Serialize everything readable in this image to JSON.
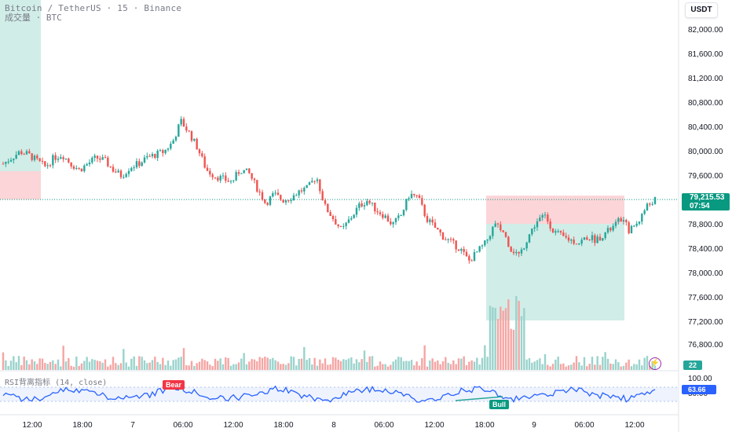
{
  "header": {
    "line1": "Bitcoin / TetherUS · 15 · Binance",
    "line2": "成交量 · BTC"
  },
  "currency_button": "USDT",
  "price_axis": {
    "labels": [
      "82,000.00",
      "81,600.00",
      "81,200.00",
      "80,800.00",
      "80,400.00",
      "80,000.00",
      "79,600.00",
      "78,800.00",
      "78,400.00",
      "78,000.00",
      "77,600.00",
      "77,200.00",
      "76,800.00"
    ],
    "rsi_labels": [
      "100.00",
      "50.00"
    ]
  },
  "current_price": {
    "price": "79,215.53",
    "countdown": "07:54"
  },
  "volume_badge": "22",
  "rsi": {
    "title": "RSI背离指标 (14, close)",
    "value": "63.66",
    "bear_label": "Bear",
    "bull_label": "Bull"
  },
  "time_axis": {
    "labels": [
      "12:00",
      "18:00",
      "7",
      "06:00",
      "12:00",
      "18:00",
      "8",
      "06:00",
      "12:00",
      "18:00",
      "9",
      "06:00",
      "12:00"
    ]
  },
  "colors": {
    "up": "#26a69a",
    "down": "#ef5350",
    "rsi_line": "#2962ff",
    "profit_zone": "#d1ede8",
    "loss_zone": "#fbd5d8"
  },
  "chart_data": {
    "type": "candlestick",
    "interval": "15",
    "symbol": "BTCUSDT",
    "ylim": [
      76600,
      82200
    ],
    "close_path": [
      79800,
      79900,
      80000,
      79950,
      79850,
      79750,
      79900,
      79950,
      79800,
      79700,
      79800,
      79900,
      79850,
      79700,
      79600,
      79750,
      79800,
      79900,
      79950,
      80000,
      80150,
      80500,
      80300,
      80050,
      79700,
      79600,
      79550,
      79500,
      79700,
      79650,
      79400,
      79150,
      79300,
      79200,
      79250,
      79350,
      79400,
      79600,
      79100,
      78900,
      78700,
      78900,
      79100,
      79200,
      79050,
      78950,
      78800,
      78950,
      79300,
      79250,
      78900,
      78750,
      78600,
      78500,
      78400,
      78200,
      78350,
      78500,
      78800,
      78700,
      78400,
      78300,
      78600,
      78850,
      78950,
      78700,
      78600,
      78550,
      78500,
      78600,
      78550,
      78650,
      78750,
      78900,
      78700,
      78850,
      79100,
      79215
    ],
    "current_price": 79215.53
  }
}
